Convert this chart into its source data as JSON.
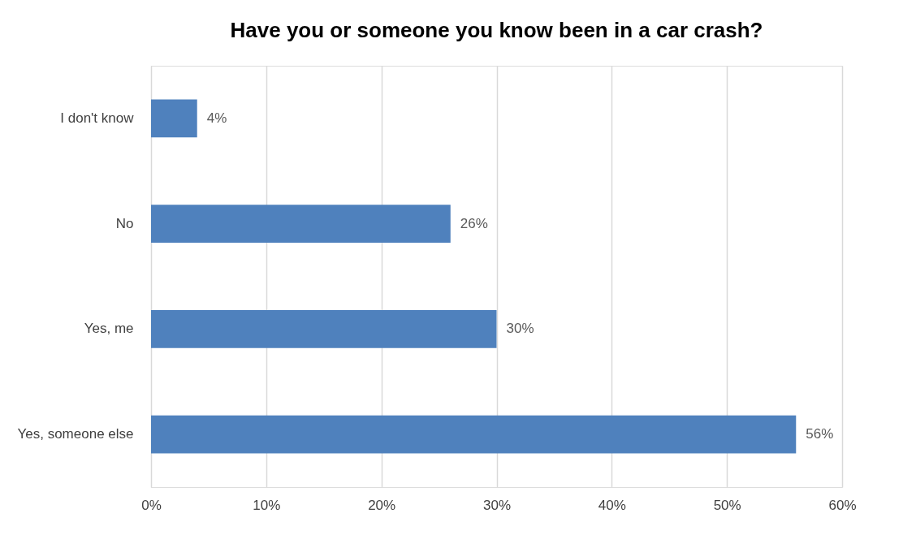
{
  "chart_data": {
    "type": "bar",
    "orientation": "horizontal",
    "title": "Have you or someone you know been in a car crash?",
    "categories": [
      "I don't know",
      "No",
      "Yes, me",
      "Yes, someone else"
    ],
    "values": [
      4,
      26,
      30,
      56
    ],
    "color": "#4f81bd",
    "data_labels": true,
    "value_labels": [
      "4%",
      "26%",
      "30%",
      "56%"
    ],
    "xlim": [
      0,
      60
    ],
    "xticks": [
      {
        "value": 0,
        "label": "0%"
      },
      {
        "value": 10,
        "label": "10%"
      },
      {
        "value": 20,
        "label": "20%"
      },
      {
        "value": 30,
        "label": "30%"
      },
      {
        "value": 40,
        "label": "40%"
      },
      {
        "value": 50,
        "label": "50%"
      },
      {
        "value": 60,
        "label": "60%"
      }
    ],
    "grid": "x"
  }
}
